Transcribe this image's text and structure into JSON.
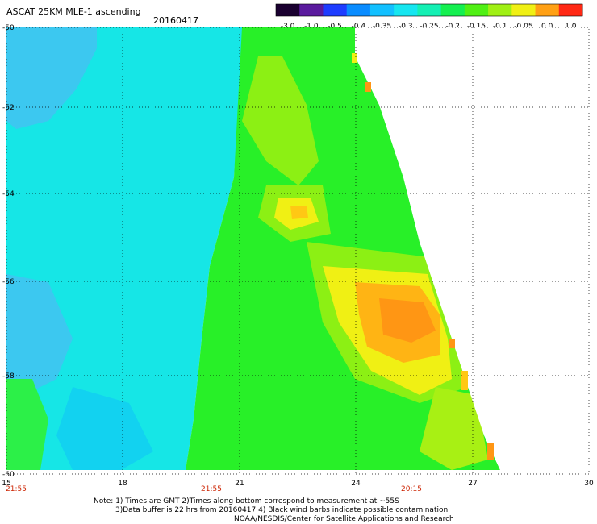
{
  "header": {
    "title": "ASCAT 25KM MLE-1 ascending",
    "date": "20160417"
  },
  "colorbar": {
    "labels": [
      "-3.0",
      "-1.0",
      "-0.5",
      "-0.4",
      "-0.35",
      "-0.3",
      "-0.25",
      "-0.2",
      "-0.15",
      "-0.1",
      "-0.05",
      "0.0",
      "1.0"
    ],
    "colors": [
      "#1a0030",
      "#5a1a9e",
      "#1e3cff",
      "#0a8cff",
      "#12c0ff",
      "#16e6f0",
      "#14f0b4",
      "#14f050",
      "#50f014",
      "#a0f014",
      "#f0f014",
      "#ffa014",
      "#ff2814"
    ]
  },
  "map": {
    "lat_labels": [
      "-50",
      "-52",
      "-54",
      "-56",
      "-58",
      "-60"
    ],
    "lon_labels": [
      "15",
      "18",
      "21",
      "24",
      "27",
      "30"
    ],
    "time_labels": [
      "21:55",
      "21:55",
      "20:15"
    ],
    "time_color": "#cc2200",
    "swath_colors": {
      "cyan": "#16e6e6",
      "aqua": "#12d2f0",
      "teal_green": "#14f0a0",
      "green": "#28f028",
      "lime": "#8cf014",
      "yellow": "#f0f014",
      "orange": "#ffb414",
      "deep_orange": "#ff8c14"
    }
  },
  "notes": {
    "line1": "Note: 1) Times are GMT 2)Times along bottom correspond to measurement at ~55S",
    "line2": "3)Data buffer is 22 hrs from 20160417 4) Black wind barbs indicate possible contamination",
    "line3": "NOAA/NESDIS/Center for Satellite Applications and Research"
  }
}
